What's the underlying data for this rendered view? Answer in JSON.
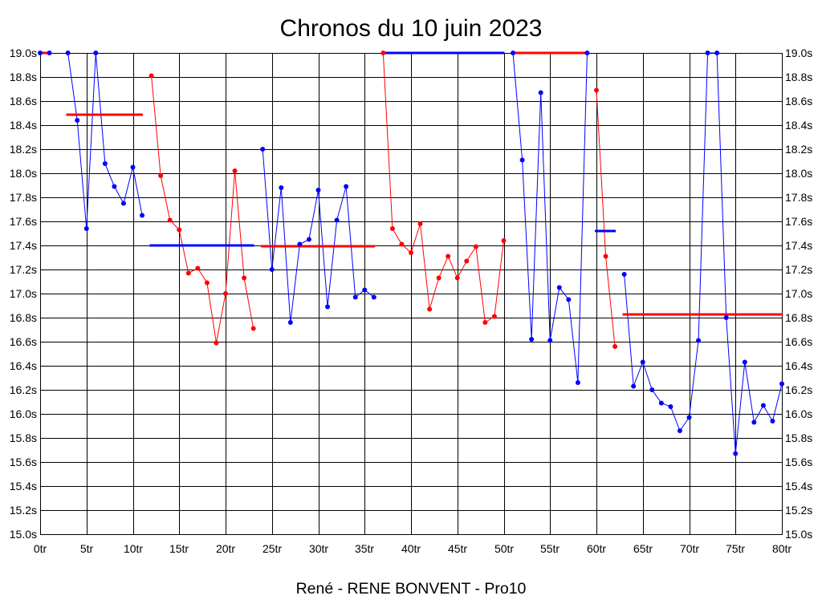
{
  "chart_data": {
    "type": "line",
    "title": "Chronos du 10 juin 2023",
    "xlabel": "René - RENE BONVENT - Pro10",
    "xlim": [
      0,
      80
    ],
    "ylim": [
      15.0,
      19.0
    ],
    "x_ticks": [
      0,
      5,
      10,
      15,
      20,
      25,
      30,
      35,
      40,
      45,
      50,
      55,
      60,
      65,
      70,
      75,
      80
    ],
    "x_tick_labels": [
      "0tr",
      "5tr",
      "10tr",
      "15tr",
      "20tr",
      "25tr",
      "30tr",
      "35tr",
      "40tr",
      "45tr",
      "50tr",
      "55tr",
      "60tr",
      "65tr",
      "70tr",
      "75tr",
      "80tr"
    ],
    "y_ticks": [
      15.0,
      15.2,
      15.4,
      15.6,
      15.8,
      16.0,
      16.2,
      16.4,
      16.6,
      16.8,
      17.0,
      17.2,
      17.4,
      17.6,
      17.8,
      18.0,
      18.2,
      18.4,
      18.6,
      18.8,
      19.0
    ],
    "y_tick_labels": [
      "15.0s",
      "15.2s",
      "15.4s",
      "15.6s",
      "15.8s",
      "16.0s",
      "16.2s",
      "16.4s",
      "16.6s",
      "16.8s",
      "17.0s",
      "17.2s",
      "17.4s",
      "17.6s",
      "17.8s",
      "18.0s",
      "18.2s",
      "18.4s",
      "18.6s",
      "18.8s",
      "19.0s"
    ],
    "y_tick_labels_right": true,
    "grid": true,
    "legend": "none",
    "marker": "circle",
    "series": [
      {
        "color": "#0000ff",
        "x": [
          0,
          1
        ],
        "values": [
          19.0,
          19.0
        ],
        "average": 19.0,
        "average_color": "#ff0000"
      },
      {
        "color": "#0000ff",
        "x": [
          3,
          4,
          5,
          6,
          7,
          8,
          9,
          10,
          11
        ],
        "values": [
          19.0,
          18.44,
          17.54,
          19.0,
          18.08,
          17.89,
          17.75,
          18.05,
          17.65
        ],
        "average": 18.49,
        "average_color": "#ff0000"
      },
      {
        "color": "#ff0000",
        "x": [
          12,
          13,
          14,
          15,
          16,
          17,
          18,
          19,
          20,
          21,
          22,
          23
        ],
        "values": [
          18.81,
          17.98,
          17.61,
          17.53,
          17.17,
          17.21,
          17.09,
          16.59,
          17.0,
          18.02,
          17.13,
          16.71
        ],
        "average": 17.4,
        "average_color": "#0000ff"
      },
      {
        "color": "#0000ff",
        "x": [
          24,
          25,
          26,
          27,
          28,
          29,
          30,
          31,
          32,
          33,
          34,
          35,
          36
        ],
        "values": [
          18.2,
          17.2,
          17.88,
          16.76,
          17.41,
          17.45,
          17.86,
          16.89,
          17.61,
          17.89,
          16.97,
          17.03,
          16.97
        ],
        "average": 17.39,
        "average_color": "#ff0000"
      },
      {
        "color": "#ff0000",
        "x": [
          37,
          38,
          39,
          40,
          41,
          42,
          43,
          44,
          45,
          46,
          47,
          48,
          49,
          50
        ],
        "values": [
          19.0,
          17.54,
          17.41,
          17.34,
          17.58,
          16.87,
          17.13,
          17.31,
          17.13,
          17.27,
          17.39,
          16.76,
          16.81,
          17.44
        ],
        "average": 19.0,
        "average_color": "#0000ff"
      },
      {
        "color": "#0000ff",
        "x": [
          51,
          52,
          53,
          54,
          55,
          56,
          57,
          58,
          59
        ],
        "values": [
          19.0,
          18.11,
          16.62,
          18.67,
          16.61,
          17.05,
          16.95,
          16.26,
          19.0
        ],
        "average": 19.0,
        "average_color": "#ff0000"
      },
      {
        "color": "#ff0000",
        "x": [
          60,
          61,
          62
        ],
        "values": [
          18.69,
          17.31,
          16.56
        ],
        "average": 17.52,
        "average_color": "#0000ff"
      },
      {
        "color": "#0000ff",
        "x": [
          63,
          64,
          65,
          66,
          67,
          68,
          69,
          70,
          71,
          72,
          73,
          74,
          75,
          76,
          77,
          78,
          79,
          80
        ],
        "values": [
          17.16,
          16.23,
          16.43,
          16.2,
          16.09,
          16.06,
          15.86,
          15.97,
          16.61,
          19.0,
          19.0,
          16.8,
          15.67,
          16.43,
          15.93,
          16.07,
          15.94,
          16.25
        ],
        "average": 16.83,
        "average_color": "#ff0000"
      }
    ]
  }
}
